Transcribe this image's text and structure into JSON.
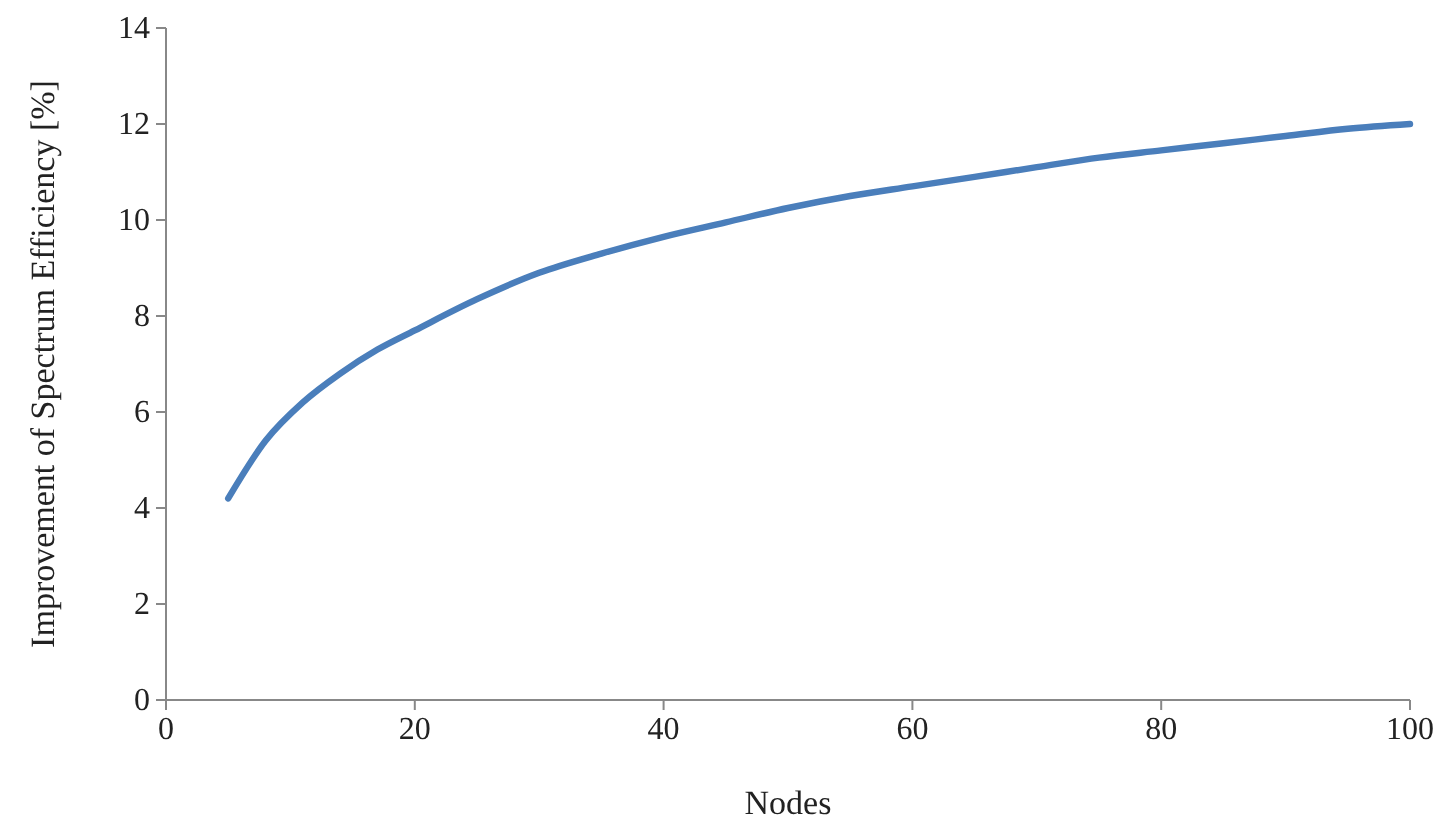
{
  "chart_data": {
    "type": "line",
    "xlabel": "Nodes",
    "ylabel": "Improvement of Spectrum Efficiency [%]",
    "x": [
      5,
      8,
      11,
      14,
      17,
      20,
      25,
      30,
      35,
      40,
      45,
      50,
      55,
      60,
      65,
      70,
      75,
      80,
      85,
      90,
      95,
      100
    ],
    "series": [
      {
        "color": "#4a7ebb",
        "values": [
          4.2,
          5.4,
          6.2,
          6.8,
          7.3,
          7.7,
          8.35,
          8.9,
          9.3,
          9.65,
          9.95,
          10.25,
          10.5,
          10.7,
          10.9,
          11.1,
          11.3,
          11.45,
          11.6,
          11.75,
          11.9,
          12.0
        ]
      }
    ],
    "xlim": [
      0,
      100
    ],
    "xticks": [
      0,
      20,
      40,
      60,
      80,
      100
    ],
    "ylim": [
      0,
      14
    ],
    "yticks": [
      0,
      2,
      4,
      6,
      8,
      10,
      12,
      14
    ],
    "grid": false,
    "marker": "none",
    "line_style": "solid"
  }
}
